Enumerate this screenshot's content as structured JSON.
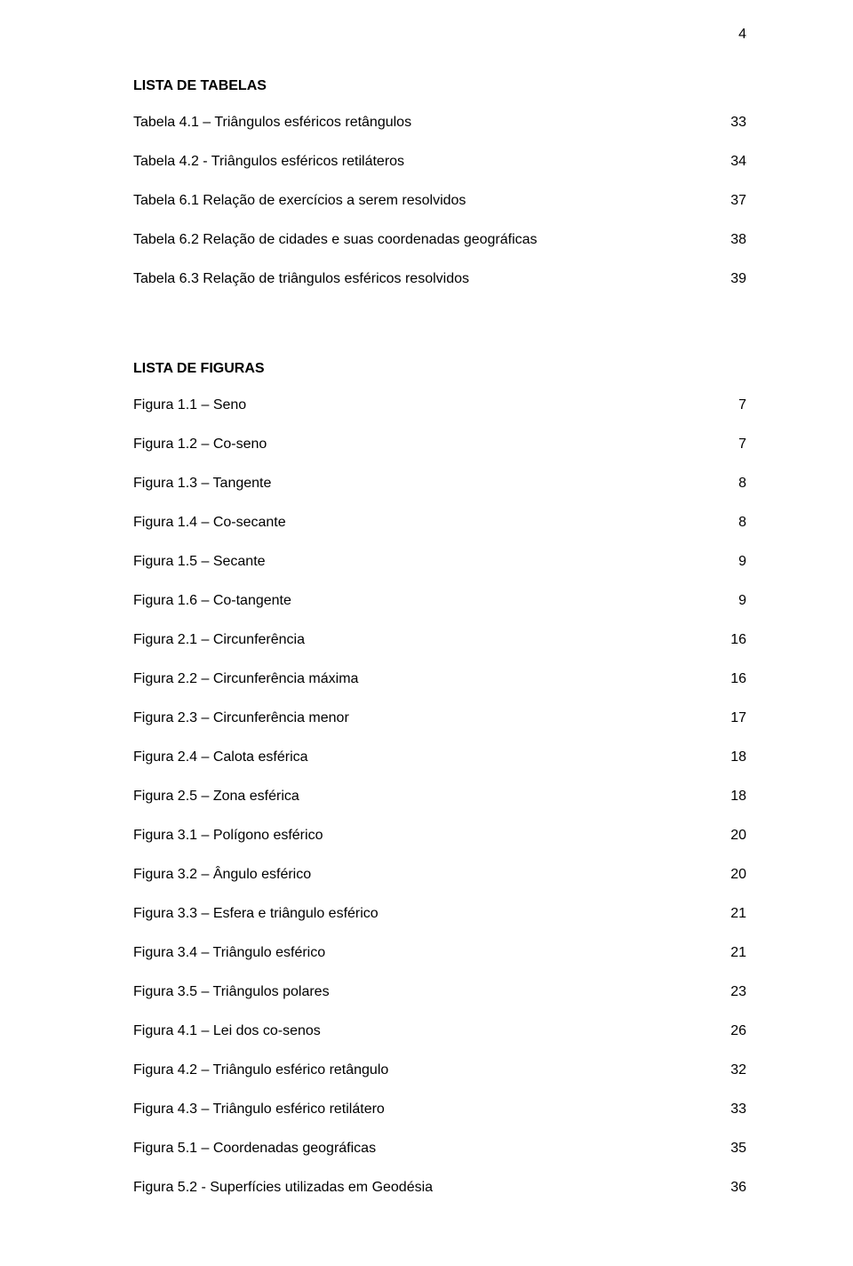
{
  "page_number": "4",
  "sections": [
    {
      "heading": "LISTA DE TABELAS",
      "entries": [
        {
          "label": "Tabela 4.1 – Triângulos esféricos retângulos",
          "page": "33"
        },
        {
          "label": "Tabela 4.2 - Triângulos esféricos retiláteros",
          "page": "34"
        },
        {
          "label": "Tabela 6.1 Relação de exercícios a serem resolvidos",
          "page": "37"
        },
        {
          "label": "Tabela 6.2 Relação de cidades e suas coordenadas geográficas",
          "page": "38"
        },
        {
          "label": "Tabela 6.3 Relação de triângulos esféricos resolvidos",
          "page": "39"
        }
      ]
    },
    {
      "heading": "LISTA DE FIGURAS",
      "entries": [
        {
          "label": "Figura 1.1 – Seno",
          "page": "7"
        },
        {
          "label": "Figura 1.2 – Co-seno",
          "page": "7"
        },
        {
          "label": "Figura 1.3 – Tangente",
          "page": "8"
        },
        {
          "label": "Figura 1.4 – Co-secante",
          "page": "8"
        },
        {
          "label": "Figura 1.5 – Secante",
          "page": "9"
        },
        {
          "label": "Figura 1.6 – Co-tangente",
          "page": "9"
        },
        {
          "label": "Figura 2.1 – Circunferência",
          "page": "16"
        },
        {
          "label": "Figura 2.2 – Circunferência máxima",
          "page": "16"
        },
        {
          "label": "Figura 2.3 – Circunferência menor",
          "page": "17"
        },
        {
          "label": "Figura 2.4 – Calota esférica",
          "page": "18"
        },
        {
          "label": "Figura 2.5 – Zona esférica",
          "page": "18"
        },
        {
          "label": "Figura 3.1 – Polígono esférico",
          "page": "20"
        },
        {
          "label": "Figura 3.2 – Ângulo esférico",
          "page": "20"
        },
        {
          "label": "Figura 3.3 – Esfera e triângulo esférico",
          "page": "21"
        },
        {
          "label": "Figura 3.4 – Triângulo esférico",
          "page": "21"
        },
        {
          "label": "Figura 3.5 – Triângulos polares",
          "page": "23"
        },
        {
          "label": "Figura 4.1 – Lei dos co-senos",
          "page": "26"
        },
        {
          "label": "Figura 4.2 – Triângulo esférico retângulo",
          "page": "32"
        },
        {
          "label": "Figura 4.3 – Triângulo esférico retilátero",
          "page": "33"
        },
        {
          "label": "Figura 5.1 – Coordenadas geográficas",
          "page": "35"
        },
        {
          "label": "Figura 5.2 - Superfícies utilizadas em Geodésia",
          "page": "36"
        }
      ]
    }
  ]
}
